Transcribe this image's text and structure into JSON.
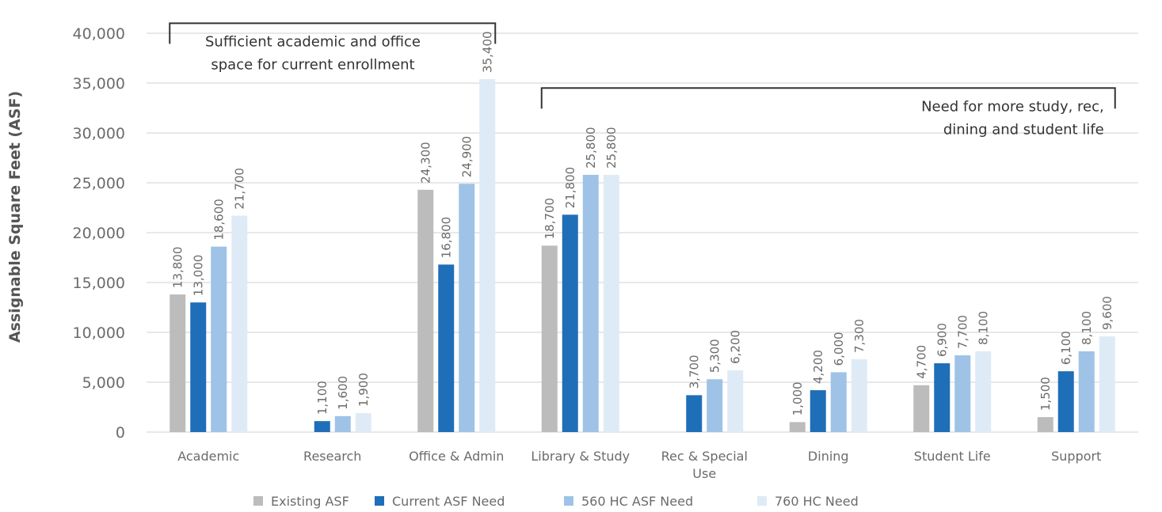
{
  "chart_data": {
    "type": "bar",
    "ylabel": "Assignable Square Feet (ASF)",
    "ylim": [
      0,
      40000
    ],
    "yticks": [
      {
        "value": 0,
        "label": "0"
      },
      {
        "value": 5000,
        "label": "5,000"
      },
      {
        "value": 10000,
        "label": "10,000"
      },
      {
        "value": 15000,
        "label": "15,000"
      },
      {
        "value": 20000,
        "label": "20,000"
      },
      {
        "value": 25000,
        "label": "25,000"
      },
      {
        "value": 30000,
        "label": "30,000"
      },
      {
        "value": 35000,
        "label": "35,000"
      },
      {
        "value": 40000,
        "label": "40,000"
      }
    ],
    "grid": true,
    "legend_position": "bottom",
    "categories": [
      [
        "Academic"
      ],
      [
        "Research"
      ],
      [
        "Office & Admin"
      ],
      [
        "Library & Study"
      ],
      [
        "Rec & Special",
        "Use"
      ],
      [
        "Dining"
      ],
      [
        "Student Life"
      ],
      [
        "Support"
      ]
    ],
    "series": [
      {
        "name": "Existing ASF",
        "color": "#bcbcbc",
        "values": [
          13800,
          null,
          24300,
          18700,
          null,
          1000,
          4700,
          1500
        ],
        "labels": [
          "13,800",
          "",
          "24,300",
          "18,700",
          "",
          "1,000",
          "4,700",
          "1,500"
        ]
      },
      {
        "name": "Current ASF Need",
        "color": "#1f6eb8",
        "values": [
          13000,
          1100,
          16800,
          21800,
          3700,
          4200,
          6900,
          6100
        ],
        "labels": [
          "13,000",
          "1,100",
          "16,800",
          "21,800",
          "3,700",
          "4,200",
          "6,900",
          "6,100"
        ]
      },
      {
        "name": "560 HC ASF Need",
        "color": "#9ec3e6",
        "values": [
          18600,
          1600,
          24900,
          25800,
          5300,
          6000,
          7700,
          8100
        ],
        "labels": [
          "18,600",
          "1,600",
          "24,900",
          "25,800",
          "5,300",
          "6,000",
          "7,700",
          "8,100"
        ]
      },
      {
        "name": "760 HC Need",
        "color": "#deebf7",
        "values": [
          21700,
          1900,
          35400,
          25800,
          6200,
          7300,
          8100,
          9600
        ],
        "labels": [
          "21,700",
          "1,900",
          "35,400",
          "25,800",
          "6,200",
          "7,300",
          "8,100",
          "9,600"
        ]
      }
    ],
    "annotations": [
      {
        "lines": [
          "Sufficient academic and office",
          "space for current enrollment"
        ],
        "spans_categories": [
          0,
          2
        ],
        "level": 41000
      },
      {
        "lines": [
          "Need for more study, rec,",
          "dining and student life"
        ],
        "spans_categories": [
          3,
          7
        ],
        "level": 34500
      }
    ]
  }
}
